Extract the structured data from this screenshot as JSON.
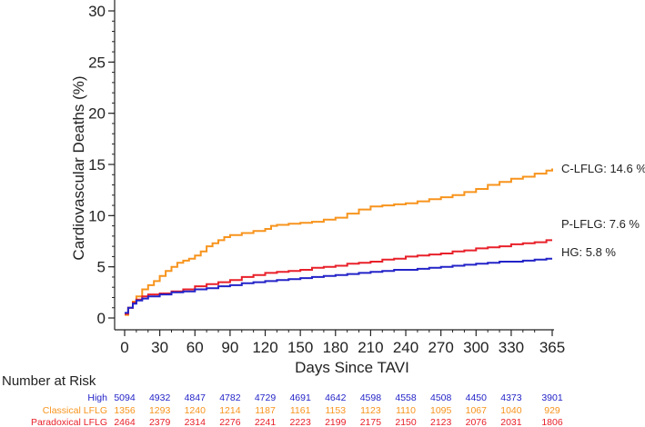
{
  "chart_data": {
    "type": "line",
    "title": "",
    "xlabel": "Days Since TAVI",
    "ylabel": "Cardiovascular Deaths (%)",
    "xlim": [
      0,
      365
    ],
    "ylim": [
      0,
      30
    ],
    "xticks": [
      0,
      30,
      60,
      90,
      120,
      150,
      180,
      210,
      240,
      270,
      300,
      330,
      365
    ],
    "yticks": [
      0,
      5,
      10,
      15,
      20,
      25,
      30
    ],
    "grid": false,
    "series": [
      {
        "name": "C-LFLG",
        "color": "#F7941D",
        "end_label": "C-LFLG: 14.6 %",
        "points": [
          [
            0,
            0.3
          ],
          [
            3,
            1.0
          ],
          [
            7,
            1.6
          ],
          [
            10,
            2.1
          ],
          [
            15,
            2.8
          ],
          [
            20,
            3.2
          ],
          [
            25,
            3.6
          ],
          [
            30,
            4.1
          ],
          [
            35,
            4.6
          ],
          [
            40,
            5.0
          ],
          [
            45,
            5.4
          ],
          [
            50,
            5.6
          ],
          [
            55,
            5.8
          ],
          [
            60,
            6.1
          ],
          [
            65,
            6.5
          ],
          [
            70,
            7.0
          ],
          [
            75,
            7.3
          ],
          [
            80,
            7.6
          ],
          [
            85,
            7.9
          ],
          [
            90,
            8.1
          ],
          [
            100,
            8.3
          ],
          [
            110,
            8.5
          ],
          [
            120,
            8.7
          ],
          [
            125,
            9.0
          ],
          [
            130,
            9.1
          ],
          [
            140,
            9.2
          ],
          [
            150,
            9.3
          ],
          [
            160,
            9.4
          ],
          [
            170,
            9.6
          ],
          [
            180,
            9.8
          ],
          [
            190,
            10.2
          ],
          [
            200,
            10.6
          ],
          [
            210,
            10.9
          ],
          [
            220,
            11.0
          ],
          [
            230,
            11.1
          ],
          [
            240,
            11.2
          ],
          [
            250,
            11.4
          ],
          [
            260,
            11.6
          ],
          [
            270,
            11.8
          ],
          [
            280,
            12.0
          ],
          [
            290,
            12.3
          ],
          [
            300,
            12.6
          ],
          [
            310,
            13.0
          ],
          [
            320,
            13.3
          ],
          [
            330,
            13.6
          ],
          [
            340,
            13.8
          ],
          [
            350,
            14.1
          ],
          [
            360,
            14.4
          ],
          [
            365,
            14.6
          ]
        ]
      },
      {
        "name": "P-LFLG",
        "color": "#E8202A",
        "end_label": "P-LFLG: 7.6 %",
        "points": [
          [
            0,
            0.4
          ],
          [
            3,
            1.0
          ],
          [
            7,
            1.5
          ],
          [
            10,
            1.8
          ],
          [
            15,
            2.1
          ],
          [
            20,
            2.3
          ],
          [
            30,
            2.4
          ],
          [
            40,
            2.6
          ],
          [
            50,
            2.8
          ],
          [
            60,
            3.1
          ],
          [
            70,
            3.3
          ],
          [
            80,
            3.5
          ],
          [
            90,
            3.7
          ],
          [
            100,
            4.0
          ],
          [
            110,
            4.2
          ],
          [
            120,
            4.4
          ],
          [
            130,
            4.5
          ],
          [
            140,
            4.6
          ],
          [
            150,
            4.7
          ],
          [
            160,
            4.9
          ],
          [
            170,
            5.0
          ],
          [
            180,
            5.1
          ],
          [
            190,
            5.3
          ],
          [
            200,
            5.4
          ],
          [
            210,
            5.5
          ],
          [
            220,
            5.7
          ],
          [
            230,
            5.8
          ],
          [
            240,
            6.0
          ],
          [
            250,
            6.1
          ],
          [
            260,
            6.2
          ],
          [
            270,
            6.3
          ],
          [
            280,
            6.5
          ],
          [
            290,
            6.6
          ],
          [
            300,
            6.8
          ],
          [
            310,
            6.9
          ],
          [
            320,
            7.0
          ],
          [
            330,
            7.2
          ],
          [
            340,
            7.3
          ],
          [
            350,
            7.4
          ],
          [
            360,
            7.6
          ],
          [
            365,
            7.6
          ]
        ]
      },
      {
        "name": "HG",
        "color": "#2323C8",
        "end_label": "HG: 5.8 %",
        "points": [
          [
            0,
            0.5
          ],
          [
            3,
            1.0
          ],
          [
            7,
            1.4
          ],
          [
            10,
            1.7
          ],
          [
            15,
            1.9
          ],
          [
            20,
            2.1
          ],
          [
            30,
            2.3
          ],
          [
            40,
            2.5
          ],
          [
            50,
            2.6
          ],
          [
            60,
            2.8
          ],
          [
            70,
            2.9
          ],
          [
            80,
            3.1
          ],
          [
            90,
            3.2
          ],
          [
            100,
            3.4
          ],
          [
            110,
            3.5
          ],
          [
            120,
            3.6
          ],
          [
            130,
            3.7
          ],
          [
            140,
            3.8
          ],
          [
            150,
            3.9
          ],
          [
            160,
            4.0
          ],
          [
            170,
            4.1
          ],
          [
            180,
            4.2
          ],
          [
            190,
            4.3
          ],
          [
            200,
            4.4
          ],
          [
            210,
            4.5
          ],
          [
            220,
            4.6
          ],
          [
            230,
            4.7
          ],
          [
            240,
            4.7
          ],
          [
            250,
            4.8
          ],
          [
            260,
            4.9
          ],
          [
            270,
            5.0
          ],
          [
            280,
            5.1
          ],
          [
            290,
            5.2
          ],
          [
            300,
            5.3
          ],
          [
            310,
            5.4
          ],
          [
            320,
            5.5
          ],
          [
            330,
            5.5
          ],
          [
            340,
            5.6
          ],
          [
            350,
            5.7
          ],
          [
            360,
            5.8
          ],
          [
            365,
            5.8
          ]
        ]
      }
    ],
    "risk_table": {
      "title": "Number at Risk",
      "rows": [
        {
          "label": "High",
          "color": "#2323C8",
          "values": [
            "5094",
            "4932",
            "4847",
            "4782",
            "4729",
            "4691",
            "4642",
            "4598",
            "4558",
            "4508",
            "4450",
            "4373",
            "3901"
          ]
        },
        {
          "label": "Classical LFLG",
          "color": "#F7941D",
          "values": [
            "1356",
            "1293",
            "1240",
            "1214",
            "1187",
            "1161",
            "1153",
            "1123",
            "1110",
            "1095",
            "1067",
            "1040",
            "929"
          ]
        },
        {
          "label": "Paradoxical LFLG",
          "color": "#E8202A",
          "values": [
            "2464",
            "2379",
            "2314",
            "2276",
            "2241",
            "2223",
            "2199",
            "2175",
            "2150",
            "2123",
            "2076",
            "2031",
            "1806"
          ]
        }
      ]
    }
  }
}
